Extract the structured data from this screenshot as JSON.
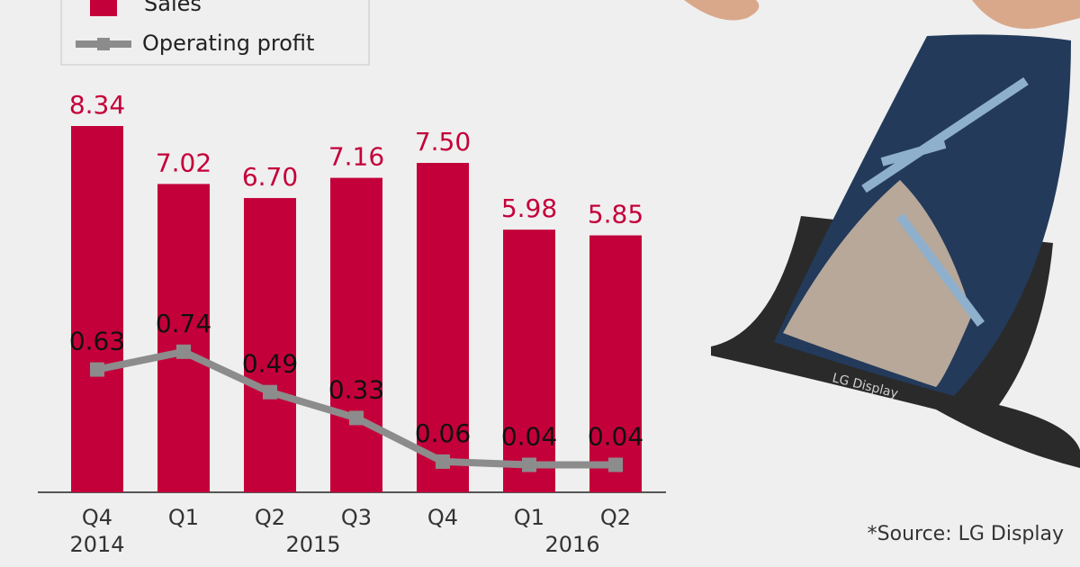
{
  "chart_data": {
    "type": "bar",
    "categories": [
      "Q4",
      "Q1",
      "Q2",
      "Q3",
      "Q4",
      "Q1",
      "Q2"
    ],
    "category_groups": [
      {
        "label": "2014",
        "span": 1
      },
      {
        "label": "2015",
        "span": 4
      },
      {
        "label": "2016",
        "span": 2
      }
    ],
    "series": [
      {
        "name": "Sales",
        "type": "bar",
        "color": "#c4003a",
        "values": [
          8.34,
          7.02,
          6.7,
          7.16,
          7.5,
          5.98,
          5.85
        ],
        "value_labels": [
          "8.34",
          "7.02",
          "6.70",
          "7.16",
          "7.50",
          "5.98",
          "5.85"
        ]
      },
      {
        "name": "Operating profit",
        "type": "line",
        "axis": "y2",
        "color": "#8c8c8c",
        "values": [
          0.63,
          0.74,
          0.49,
          0.33,
          0.06,
          0.04,
          0.04
        ]
      }
    ],
    "ylim": [
      0,
      9.16
    ],
    "y2lim": [
      -0.13,
      2.36
    ],
    "source": "*Source: LG Display",
    "image_brand": "LG Display"
  }
}
